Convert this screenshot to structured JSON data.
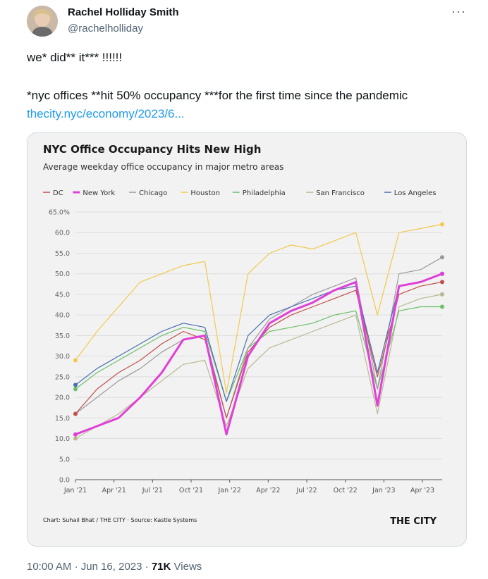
{
  "author": {
    "name": "Rachel Holliday Smith",
    "handle": "@rachelholliday",
    "more_label": "···"
  },
  "tweet": {
    "line1": "we* did** it*** !!!!!!",
    "line2": "*nyc offices **hit 50% occupancy ***for the first time since the pandemic",
    "link": "thecity.nyc/economy/2023/6..."
  },
  "footer": {
    "time": "10:00 AM",
    "sep1": "·",
    "date": "Jun 16, 2023",
    "sep2": "·",
    "views_count": "71K",
    "views_label": "Views"
  },
  "chart_data": {
    "type": "line",
    "title": "NYC Office Occupancy Hits New High",
    "subtitle": "Average weekday office occupancy in major metro areas",
    "ylim": [
      0,
      65
    ],
    "y_ticks": [
      "0.0",
      "5.0",
      "10.0",
      "15.0",
      "20.0",
      "25.0",
      "30.0",
      "35.0",
      "40.0",
      "45.0",
      "50.0",
      "55.0",
      "60.0",
      "65.0%"
    ],
    "x_ticks": [
      "Jan '21",
      "Apr '21",
      "Jul '21",
      "Oct '21",
      "Jan '22",
      "Apr '22",
      "Jul '22",
      "Oct '22",
      "Jan '23",
      "Apr '23"
    ],
    "x": [
      "Jan '21",
      "Mar '21",
      "May '21",
      "Jul '21",
      "Sep '21",
      "Nov '21",
      "Dec '21",
      "Jan '22",
      "Mar '22",
      "May '22",
      "Jul '22",
      "Sep '22",
      "Nov '22",
      "Dec '22",
      "Jan '23",
      "Mar '23",
      "May '23",
      "Jun '23"
    ],
    "series": [
      {
        "name": "DC",
        "color": "#c0504d",
        "values": [
          16,
          22,
          26,
          29,
          33,
          36,
          34,
          15,
          31,
          37,
          40,
          42,
          44,
          46,
          25,
          45,
          47,
          48
        ]
      },
      {
        "name": "New York",
        "color": "#e040d8",
        "values": [
          11,
          13,
          15,
          20,
          26,
          34,
          35,
          11,
          30,
          38,
          41,
          43,
          46,
          48,
          18,
          47,
          48,
          50
        ]
      },
      {
        "name": "Chicago",
        "color": "#9a9a9a",
        "values": [
          16,
          20,
          24,
          27,
          31,
          34,
          35,
          15,
          32,
          39,
          42,
          45,
          47,
          49,
          22,
          50,
          51,
          54
        ]
      },
      {
        "name": "Houston",
        "color": "#f2c94c",
        "values": [
          29,
          36,
          42,
          48,
          50,
          52,
          53,
          21,
          50,
          55,
          57,
          56,
          58,
          60,
          40,
          60,
          61,
          62
        ]
      },
      {
        "name": "Philadelphia",
        "color": "#6abf69",
        "values": [
          22,
          26,
          29,
          32,
          35,
          37,
          36,
          19,
          32,
          36,
          37,
          38,
          40,
          41,
          22,
          41,
          42,
          42
        ]
      },
      {
        "name": "San Francisco",
        "color": "#b8b890",
        "values": [
          10,
          13,
          16,
          20,
          24,
          28,
          29,
          13,
          27,
          32,
          34,
          36,
          38,
          40,
          16,
          42,
          44,
          45
        ]
      },
      {
        "name": "Los Angeles",
        "color": "#4a6fb0",
        "values": [
          23,
          27,
          30,
          33,
          36,
          38,
          37,
          19,
          35,
          40,
          42,
          44,
          46,
          47,
          26,
          47,
          48,
          50
        ]
      }
    ],
    "source_note": "Chart: Suhail Bhat / THE CITY · Source: Kastle Systems",
    "brand": "THE CITY"
  }
}
